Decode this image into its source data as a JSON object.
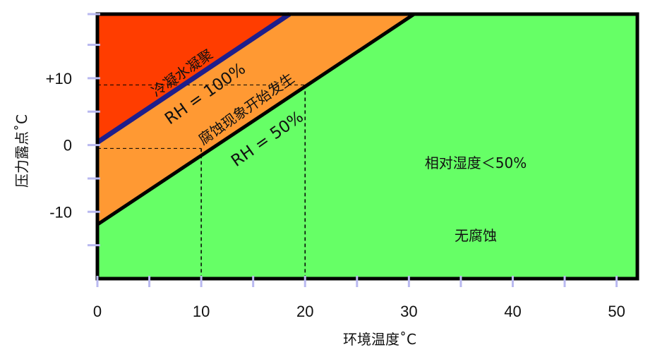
{
  "chart_data": {
    "type": "area",
    "xlabel": "环境温度˚C",
    "ylabel": "压力露点˚C",
    "xlim": [
      0,
      52
    ],
    "ylim": [
      -20,
      19.6
    ],
    "x_ticks": [
      0,
      10,
      20,
      30,
      40,
      50
    ],
    "x_tick_labels": [
      "0",
      "10",
      "20",
      "30",
      "40",
      "50"
    ],
    "x_minor_ticks": [
      0,
      5,
      10,
      15,
      20,
      25,
      30,
      35,
      40,
      45,
      50
    ],
    "y_ticks": [
      -10,
      0,
      10
    ],
    "y_tick_labels": [
      "-10",
      "0",
      "+10"
    ],
    "y_minor_ticks": [
      -15,
      -10,
      -5,
      0,
      5,
      10,
      15,
      19.6
    ],
    "grid": false,
    "series": [
      {
        "name": "RH = 100%",
        "x": [
          0,
          18.5
        ],
        "y": [
          0.4,
          19.6
        ],
        "color": "#1e1e8c"
      },
      {
        "name": "RH = 50%",
        "x": [
          0,
          30.5
        ],
        "y": [
          -11.9,
          19.6
        ],
        "color": "#000000"
      }
    ],
    "regions": [
      {
        "label": "冷凝水凝聚",
        "color": "#ff3d00"
      },
      {
        "label": "腐蚀现象开始发生",
        "color": "#ff9933"
      },
      {
        "label": "相对湿度＜50%",
        "label2": "无腐蚀",
        "color": "#66ff66"
      }
    ],
    "reference_points": [
      {
        "x": 10,
        "y": -0.5
      },
      {
        "x": 20,
        "y": 9
      }
    ]
  }
}
